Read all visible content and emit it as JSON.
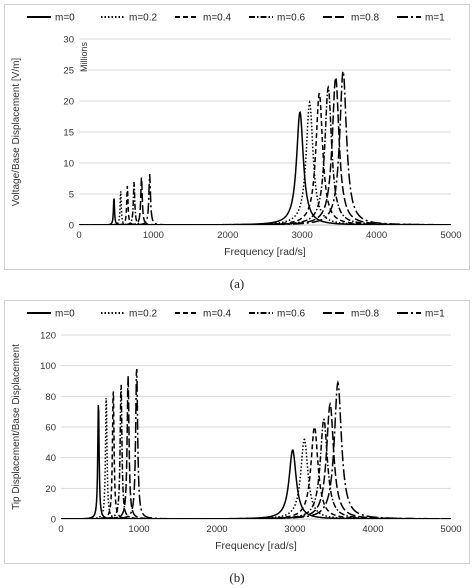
{
  "chart_data": [
    {
      "type": "line",
      "caption": "(a)",
      "xlabel": "Frequency [rad/s]",
      "ylabel": "Voltage/Base Displacement [V/m]",
      "yunit_label": "Millions",
      "xlim": [
        0,
        5000
      ],
      "ylim": [
        0,
        30
      ],
      "xticks": [
        0,
        1000,
        2000,
        3000,
        4000,
        5000
      ],
      "yticks": [
        0,
        5,
        10,
        15,
        20,
        25,
        30
      ],
      "grid": true,
      "legend_position": "top",
      "series": [
        {
          "name": "m=0",
          "dash": "solid",
          "peaks": [
            {
              "x": 470,
              "y": 4.6,
              "w": 8
            },
            {
              "x": 2970,
              "y": 18.2,
              "w": 55
            }
          ]
        },
        {
          "name": "m=0.2",
          "dash": "dotted",
          "peaks": [
            {
              "x": 560,
              "y": 5.5,
              "w": 9
            },
            {
              "x": 3100,
              "y": 19.8,
              "w": 55
            }
          ]
        },
        {
          "name": "m=0.4",
          "dash": "dashed",
          "peaks": [
            {
              "x": 650,
              "y": 6.3,
              "w": 10
            },
            {
              "x": 3230,
              "y": 21.2,
              "w": 55
            }
          ]
        },
        {
          "name": "m=0.6",
          "dash": "dashdot",
          "peaks": [
            {
              "x": 740,
              "y": 7.0,
              "w": 11
            },
            {
              "x": 3350,
              "y": 22.2,
              "w": 55
            }
          ]
        },
        {
          "name": "m=0.8",
          "dash": "longdash",
          "peaks": [
            {
              "x": 840,
              "y": 7.7,
              "w": 12
            },
            {
              "x": 3450,
              "y": 23.8,
              "w": 55
            }
          ]
        },
        {
          "name": "m=1",
          "dash": "longdashdot",
          "peaks": [
            {
              "x": 950,
              "y": 8.2,
              "w": 13
            },
            {
              "x": 3550,
              "y": 24.8,
              "w": 55
            }
          ]
        }
      ]
    },
    {
      "type": "line",
      "caption": "(b)",
      "xlabel": "Frequency [rad/s]",
      "ylabel": "Tip Displacement/Base Displacement",
      "xlim": [
        0,
        5000
      ],
      "ylim": [
        0,
        120
      ],
      "xticks": [
        0,
        1000,
        2000,
        3000,
        4000,
        5000
      ],
      "yticks": [
        0,
        20,
        40,
        60,
        80,
        100,
        120
      ],
      "grid": true,
      "legend_position": "top",
      "series": [
        {
          "name": "m=0",
          "dash": "solid",
          "peaks": [
            {
              "x": 480,
              "y": 78,
              "w": 10
            },
            {
              "x": 2970,
              "y": 45,
              "w": 55
            }
          ]
        },
        {
          "name": "m=0.2",
          "dash": "dotted",
          "peaks": [
            {
              "x": 580,
              "y": 82,
              "w": 11
            },
            {
              "x": 3120,
              "y": 52,
              "w": 55
            }
          ]
        },
        {
          "name": "m=0.4",
          "dash": "dashed",
          "peaks": [
            {
              "x": 670,
              "y": 86,
              "w": 12
            },
            {
              "x": 3250,
              "y": 60,
              "w": 55
            }
          ]
        },
        {
          "name": "m=0.6",
          "dash": "dashdot",
          "peaks": [
            {
              "x": 770,
              "y": 90,
              "w": 13
            },
            {
              "x": 3370,
              "y": 65,
              "w": 55
            }
          ]
        },
        {
          "name": "m=0.8",
          "dash": "longdash",
          "peaks": [
            {
              "x": 860,
              "y": 94,
              "w": 14
            },
            {
              "x": 3450,
              "y": 75,
              "w": 55
            }
          ]
        },
        {
          "name": "m=1",
          "dash": "longdashdot",
          "peaks": [
            {
              "x": 970,
              "y": 100,
              "w": 15
            },
            {
              "x": 3550,
              "y": 89,
              "w": 55
            }
          ]
        }
      ]
    }
  ]
}
